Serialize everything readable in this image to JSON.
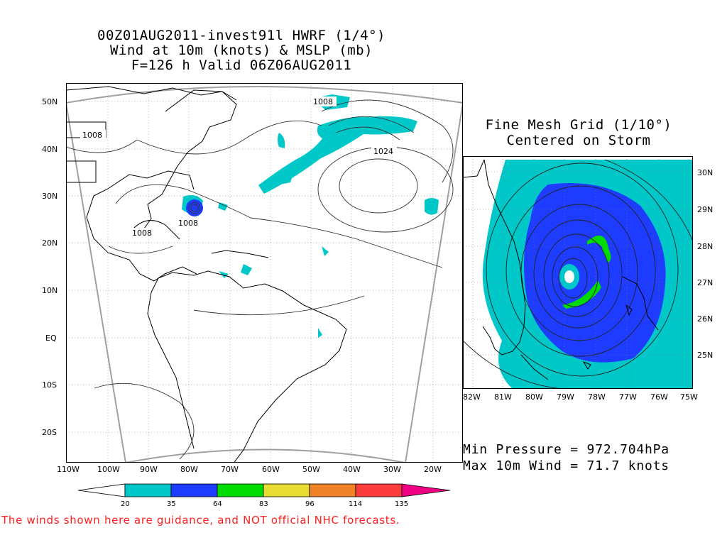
{
  "title": {
    "line1": "00Z01AUG2011-invest91l HWRF (1/4°)",
    "line2": "Wind at 10m (knots) & MSLP (mb)",
    "line3": "F=126 h Valid 06Z06AUG2011"
  },
  "fine_mesh": {
    "line1": "Fine Mesh Grid (1/10°)",
    "line2": "Centered on Storm"
  },
  "main_map": {
    "lat_ticks": [
      "50N",
      "40N",
      "30N",
      "20N",
      "10N",
      "EQ",
      "10S",
      "20S"
    ],
    "lon_ticks": [
      "110W",
      "100W",
      "90W",
      "80W",
      "70W",
      "60W",
      "50W",
      "40W",
      "30W",
      "20W"
    ],
    "isobar_labels": [
      "1008",
      "1008",
      "1024",
      "1008",
      "1008"
    ]
  },
  "inset_map": {
    "lat_ticks": [
      "30N",
      "29N",
      "28N",
      "27N",
      "26N",
      "25N"
    ],
    "lon_ticks": [
      "82W",
      "81W",
      "80W",
      "79W",
      "78W",
      "77W",
      "76W",
      "75W"
    ]
  },
  "stats": {
    "min_pressure": "Min Pressure = 972.704hPa",
    "max_wind": "Max 10m Wind = 71.7 knots"
  },
  "colorbar": {
    "labels": [
      "20",
      "35",
      "64",
      "83",
      "96",
      "114",
      "135"
    ],
    "colors": [
      "#ffffff",
      "#00c8c8",
      "#1e3cff",
      "#00dc00",
      "#e6dc32",
      "#f08228",
      "#fa3c3c",
      "#f00082"
    ]
  },
  "colors": {
    "wind_20_35": "#00c8c8",
    "wind_35_64": "#1e3cff",
    "wind_64_83": "#00dc00",
    "frame": "#a0a0a0",
    "warning": "#ff2020"
  },
  "disclaimer": "The winds shown here are guidance, and NOT official NHC forecasts."
}
